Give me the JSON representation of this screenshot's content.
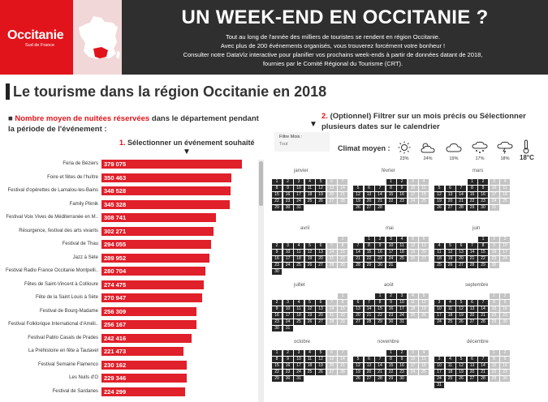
{
  "header": {
    "logo_text": "Occitanie",
    "logo_sub": "Sud de France",
    "title": "UN WEEK-END EN OCCITANIE ?",
    "intro_lines": [
      "Tout au long de l'année des milliers de touristes se rendent en région Occitanie.",
      "Avec plus de 200 événements organisés, vous trouverez forcément votre bonheur !",
      "Consulter notre DataViz interactive pour planifier vos prochains week-ends à partir de données datant de 2018,",
      "fournies par le Comité Régional du Tourisme (CRT)."
    ]
  },
  "section_title": "Le tourisme dans la région Occitanie en 2018",
  "left": {
    "bullet": "■",
    "q_red": "Nombre moyen de nuitées réservées",
    "q_rest": " dans le département pendant la période de l'événement :",
    "step_num": "1.",
    "step_text": " Sélectionner un événement souhaité",
    "arrow": "▼"
  },
  "chart_data": {
    "type": "bar",
    "orientation": "horizontal",
    "categories": [
      "Feria de Béziers",
      "Foire et fêtes de l'huître",
      "Festival d'opérettes de Lamalou-les-Bains",
      "Family Piknik",
      "Festival Voix Vives de Méditerranée en M..",
      "Résurgence, festival des arts vivants",
      "Festival de Thau",
      "Jazz à Sète",
      "Festival Radio France Occitanie Montpelli..",
      "Fêtes de Saint-Vincent à Collioure",
      "Fête de la Saint Louis à Sète",
      "Festival de Bourg-Madame",
      "Festival Folklorique International d'Améli..",
      "Festival Pablo Casals de Prades",
      "La Préhistoire en fête à Tautavel",
      "Festival Semaine Flamenco",
      "Les Nuits d'O",
      "Festival de Sardanes"
    ],
    "values": [
      379075,
      350463,
      348528,
      345328,
      308741,
      302271,
      294055,
      289952,
      280704,
      274475,
      270947,
      256309,
      256167,
      242416,
      221473,
      230162,
      229346,
      224299
    ],
    "labels": [
      "379 075",
      "350 463",
      "348 528",
      "345 328",
      "308 741",
      "302 271",
      "294 055",
      "289 952",
      "280 704",
      "274 475",
      "270 947",
      "256 309",
      "256 167",
      "242 416",
      "221 473",
      "230 162",
      "229 346",
      "224 299"
    ],
    "xmax": 400000,
    "bar_color": "#e0202a"
  },
  "right": {
    "step_num": "2.",
    "step_text": " (Optionnel) Filtrer sur un mois précis ou Sélectionner plusieurs dates sur le calendrier",
    "arrow": "▼",
    "filter_label": "Filtre Mois :",
    "filter_value": "Tout",
    "climat_label": "Climat moyen :",
    "weather": [
      {
        "icon": "sun-icon",
        "pct": "23%"
      },
      {
        "icon": "sun-cloud-icon",
        "pct": "24%"
      },
      {
        "icon": "cloud-icon",
        "pct": "19%"
      },
      {
        "icon": "rain-cloud-icon",
        "pct": "17%"
      },
      {
        "icon": "storm-cloud-icon",
        "pct": "18%"
      }
    ],
    "temperature": "18°C"
  },
  "calendar": {
    "months": [
      "janvier",
      "février",
      "mars",
      "avril",
      "mai",
      "juin",
      "juillet",
      "août",
      "septembre",
      "octobre",
      "novembre",
      "décembre"
    ],
    "start_offsets": [
      0,
      3,
      3,
      6,
      1,
      4,
      6,
      2,
      5,
      0,
      3,
      5
    ],
    "day_counts": [
      31,
      28,
      31,
      30,
      31,
      30,
      31,
      31,
      30,
      31,
      30,
      31
    ]
  }
}
